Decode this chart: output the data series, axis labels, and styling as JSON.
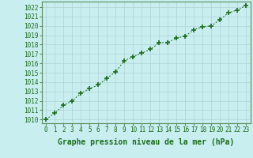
{
  "x": [
    0,
    1,
    2,
    3,
    4,
    5,
    6,
    7,
    8,
    9,
    10,
    11,
    12,
    13,
    14,
    15,
    16,
    17,
    18,
    19,
    20,
    21,
    22,
    23
  ],
  "y": [
    1010.0,
    1010.7,
    1011.5,
    1012.0,
    1012.8,
    1013.3,
    1013.7,
    1014.4,
    1015.1,
    1016.3,
    1016.7,
    1017.1,
    1017.5,
    1018.2,
    1018.25,
    1018.7,
    1018.9,
    1019.6,
    1019.9,
    1020.0,
    1020.7,
    1021.4,
    1021.7,
    1022.2
  ],
  "line_color": "#1a6b1a",
  "marker": "+",
  "marker_size": 4,
  "bg_color": "#c8eef0",
  "grid_color": "#b0d4d4",
  "xlabel": "Graphe pression niveau de la mer (hPa)",
  "xlabel_fontsize": 7,
  "ylabel_ticks": [
    1010,
    1011,
    1012,
    1013,
    1014,
    1015,
    1016,
    1017,
    1018,
    1019,
    1020,
    1021,
    1022
  ],
  "xlim": [
    -0.5,
    23.5
  ],
  "ylim": [
    1009.6,
    1022.6
  ],
  "tick_fontsize": 5.5,
  "tick_color": "#1a6b1a",
  "spine_color": "#5a8a5a"
}
